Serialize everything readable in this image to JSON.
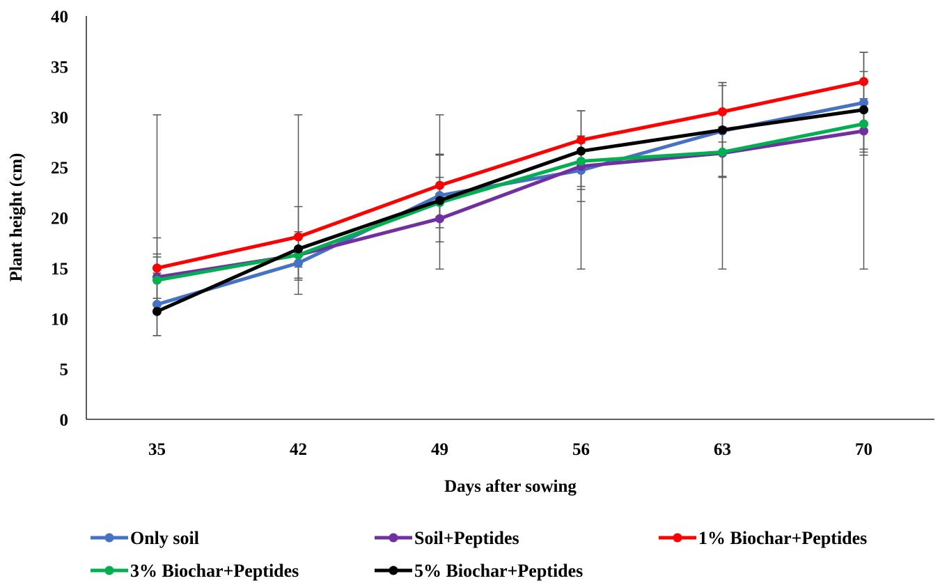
{
  "chart_data": {
    "type": "line",
    "title": "",
    "xlabel": "Days after sowing",
    "ylabel": "Plant height (cm)",
    "categories": [
      "35",
      "42",
      "49",
      "56",
      "63",
      "70"
    ],
    "ylim": [
      0,
      40
    ],
    "yticks": [
      "0",
      "5",
      "10",
      "15",
      "20",
      "25",
      "30",
      "35",
      "40"
    ],
    "grid": false,
    "legend_position": "bottom",
    "error_bars": true,
    "series": [
      {
        "name": "Only soil",
        "color": "#4472C4",
        "values": [
          11.4,
          15.5,
          22.2,
          24.7,
          28.6,
          31.4
        ],
        "error_low": [
          8.3,
          12.4,
          17.6,
          21.6,
          24.1,
          26.2
        ],
        "error_high": [
          14.5,
          18.6,
          26.3,
          27.8,
          33.1,
          36.4
        ]
      },
      {
        "name": "Soil+Peptides",
        "color": "#7030A0",
        "values": [
          14.1,
          16.3,
          19.9,
          25.1,
          26.4,
          28.6
        ],
        "error_low": [
          12.0,
          13.8,
          17.6,
          22.8,
          24.0,
          26.5
        ],
        "error_high": [
          16.4,
          18.6,
          22.4,
          27.4,
          28.6,
          30.8
        ]
      },
      {
        "name": "1% Biochar+Peptides",
        "color": "#FF0000",
        "values": [
          15.0,
          18.1,
          23.2,
          27.7,
          30.5,
          33.5
        ],
        "error_low": [
          12.0,
          15.1,
          20.1,
          24.9,
          27.5,
          30.5
        ],
        "error_high": [
          18.0,
          21.1,
          26.2,
          30.6,
          33.4,
          36.4
        ]
      },
      {
        "name": "3% Biochar+Peptides",
        "color": "#00B050",
        "values": [
          13.8,
          16.3,
          21.5,
          25.6,
          26.5,
          29.3
        ],
        "error_low": [
          11.5,
          14.0,
          19.0,
          23.1,
          24.0,
          26.8
        ],
        "error_high": [
          16.1,
          18.6,
          24.0,
          28.1,
          29.0,
          31.8
        ]
      },
      {
        "name": "5% Biochar+Peptides",
        "color": "#000000",
        "values": [
          10.7,
          16.9,
          21.7,
          26.6,
          28.7,
          30.7
        ],
        "error_low": [
          8.3,
          14.0,
          14.9,
          14.9,
          14.9,
          14.9
        ],
        "error_high": [
          30.2,
          30.2,
          30.2,
          30.6,
          33.4,
          34.5
        ]
      }
    ]
  }
}
